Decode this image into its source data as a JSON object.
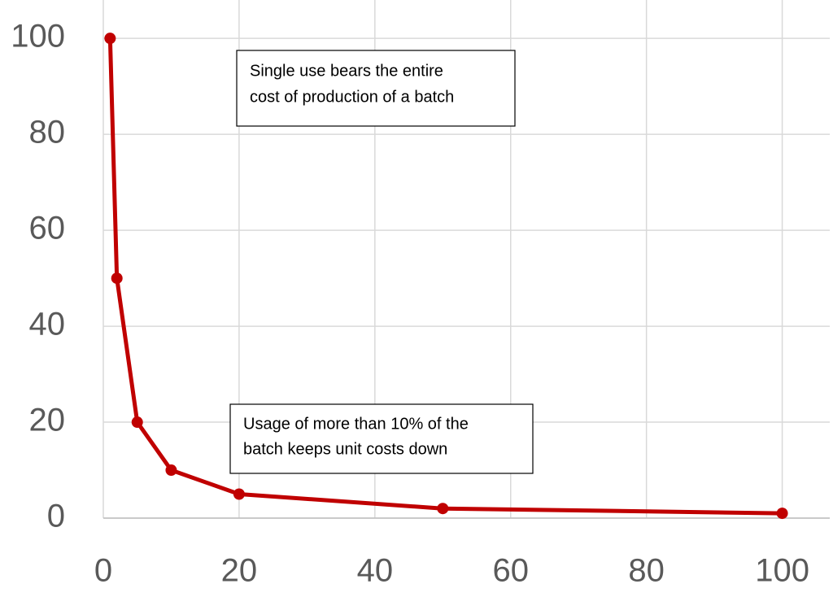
{
  "chart_data": {
    "type": "line",
    "x": [
      1,
      2,
      5,
      10,
      20,
      50,
      100
    ],
    "series": [
      {
        "color": "#c00000",
        "values": [
          100,
          50,
          20,
          10,
          5,
          2,
          1
        ]
      }
    ],
    "xlim": [
      0,
      107
    ],
    "xticks": [
      0,
      20,
      40,
      60,
      80,
      100
    ],
    "ylim": [
      0,
      108
    ],
    "yticks": [
      0,
      20,
      40,
      60,
      80,
      100
    ],
    "grid": true,
    "annotations": [
      {
        "lines": [
          "Single use bears the entire",
          "cost of production of a batch"
        ]
      },
      {
        "lines": [
          "Usage of more than 10% of the",
          "batch keeps unit costs down"
        ]
      }
    ]
  }
}
